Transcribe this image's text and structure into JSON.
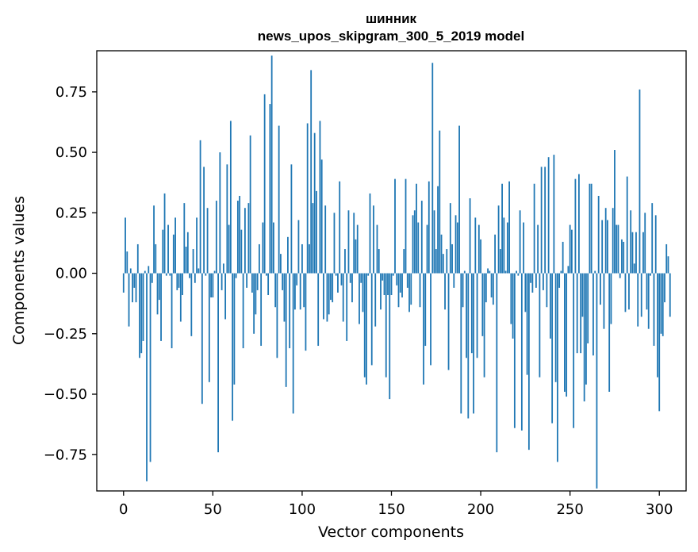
{
  "chart_data": {
    "type": "bar",
    "title": "шинник",
    "subtitle": "news_upos_skipgram_300_5_2019 model",
    "xlabel": "Vector components",
    "ylabel": "Components values",
    "xlim": [
      -15,
      315
    ],
    "ylim": [
      -0.9,
      0.92
    ],
    "xticks": [
      0,
      50,
      100,
      150,
      200,
      250,
      300
    ],
    "yticks": [
      -0.75,
      -0.5,
      -0.25,
      0.0,
      0.25,
      0.5,
      0.75
    ],
    "xtick_labels": [
      "0",
      "50",
      "100",
      "150",
      "200",
      "250",
      "300"
    ],
    "ytick_labels": [
      "−0.75",
      "−0.50",
      "−0.25",
      "0.00",
      "0.25",
      "0.50",
      "0.75"
    ],
    "grid": false,
    "bar_color": "#1f77b4",
    "values": [
      -0.08,
      0.23,
      0.09,
      -0.22,
      0.02,
      -0.12,
      -0.06,
      -0.12,
      0.12,
      -0.35,
      -0.33,
      -0.28,
      0.01,
      -0.86,
      0.03,
      -0.78,
      -0.04,
      0.28,
      0.12,
      -0.17,
      -0.11,
      -0.28,
      0.18,
      0.33,
      -0.01,
      0.2,
      -0.01,
      -0.31,
      0.16,
      0.23,
      -0.07,
      -0.06,
      -0.2,
      -0.09,
      0.29,
      0.11,
      0.17,
      -0.02,
      -0.26,
      0.1,
      -0.04,
      0.23,
      0.02,
      0.55,
      -0.54,
      0.44,
      -0.01,
      0.27,
      -0.45,
      -0.1,
      -0.1,
      0.01,
      0.3,
      -0.74,
      0.5,
      -0.07,
      0.04,
      -0.19,
      0.45,
      0.2,
      0.63,
      -0.61,
      -0.46,
      -0.02,
      0.3,
      0.32,
      0.18,
      -0.31,
      0.27,
      -0.06,
      0.29,
      0.57,
      -0.08,
      -0.25,
      -0.17,
      -0.07,
      0.12,
      -0.3,
      0.21,
      0.74,
      -0.01,
      -0.09,
      0.7,
      0.9,
      0.21,
      -0.14,
      -0.35,
      0.61,
      0.08,
      -0.07,
      -0.2,
      -0.47,
      0.15,
      -0.31,
      0.45,
      -0.58,
      -0.15,
      -0.05,
      0.22,
      -0.15,
      0.12,
      -0.14,
      -0.32,
      0.62,
      0.12,
      0.84,
      0.29,
      0.58,
      0.34,
      -0.3,
      0.63,
      0.47,
      -0.19,
      0.28,
      -0.2,
      -0.17,
      -0.11,
      -0.12,
      0.25,
      -0.01,
      -0.08,
      0.38,
      -0.05,
      -0.2,
      0.1,
      -0.28,
      0.26,
      -0.04,
      -0.12,
      0.25,
      0.14,
      0.2,
      -0.21,
      -0.04,
      -0.16,
      -0.43,
      -0.46,
      -0.01,
      0.33,
      -0.38,
      0.28,
      -0.22,
      0.2,
      0.1,
      -0.15,
      -0.03,
      -0.09,
      -0.43,
      -0.09,
      -0.52,
      -0.09,
      -0.01,
      0.39,
      -0.05,
      -0.14,
      -0.08,
      -0.1,
      0.1,
      0.39,
      -0.06,
      -0.16,
      -0.13,
      0.24,
      0.26,
      0.37,
      0.21,
      -0.14,
      0.3,
      -0.46,
      -0.3,
      0.2,
      0.38,
      -0.38,
      0.87,
      0.26,
      0.1,
      0.36,
      0.59,
      0.16,
      0.08,
      -0.15,
      0.1,
      -0.4,
      0.29,
      0.12,
      -0.06,
      0.24,
      0.21,
      0.61,
      -0.58,
      -0.14,
      0.01,
      -0.35,
      -0.6,
      0.31,
      -0.33,
      -0.58,
      0.23,
      -0.35,
      0.2,
      0.14,
      -0.26,
      -0.43,
      -0.12,
      0.02,
      0.01,
      -0.1,
      -0.13,
      0.16,
      -0.74,
      0.28,
      0.1,
      0.37,
      0.23,
      0.01,
      0.21,
      0.38,
      -0.21,
      -0.27,
      -0.64,
      0.01,
      -0.01,
      0.26,
      -0.65,
      0.21,
      -0.16,
      -0.42,
      -0.73,
      -0.04,
      -0.08,
      0.37,
      -0.06,
      0.2,
      -0.43,
      0.44,
      -0.07,
      0.44,
      -0.14,
      0.48,
      -0.27,
      -0.62,
      0.49,
      -0.45,
      -0.78,
      -0.06,
      0.01,
      0.13,
      -0.49,
      -0.51,
      0.03,
      0.2,
      0.18,
      -0.64,
      0.39,
      -0.33,
      0.41,
      -0.33,
      -0.18,
      -0.53,
      -0.46,
      -0.29,
      0.37,
      0.37,
      -0.34,
      0.01,
      -0.89,
      0.32,
      -0.13,
      0.22,
      -0.23,
      0.27,
      0.22,
      -0.49,
      -0.21,
      0.27,
      0.51,
      0.2,
      0.2,
      -0.02,
      0.14,
      0.13,
      -0.16,
      0.4,
      -0.15,
      0.26,
      0.17,
      0.04,
      0.17,
      -0.22,
      0.76,
      -0.18,
      0.17,
      0.25,
      -0.15,
      -0.23,
      -0.01,
      0.29,
      -0.3,
      0.24,
      -0.43,
      -0.57,
      -0.25,
      -0.26,
      -0.12,
      0.12,
      0.07,
      -0.18
    ]
  }
}
